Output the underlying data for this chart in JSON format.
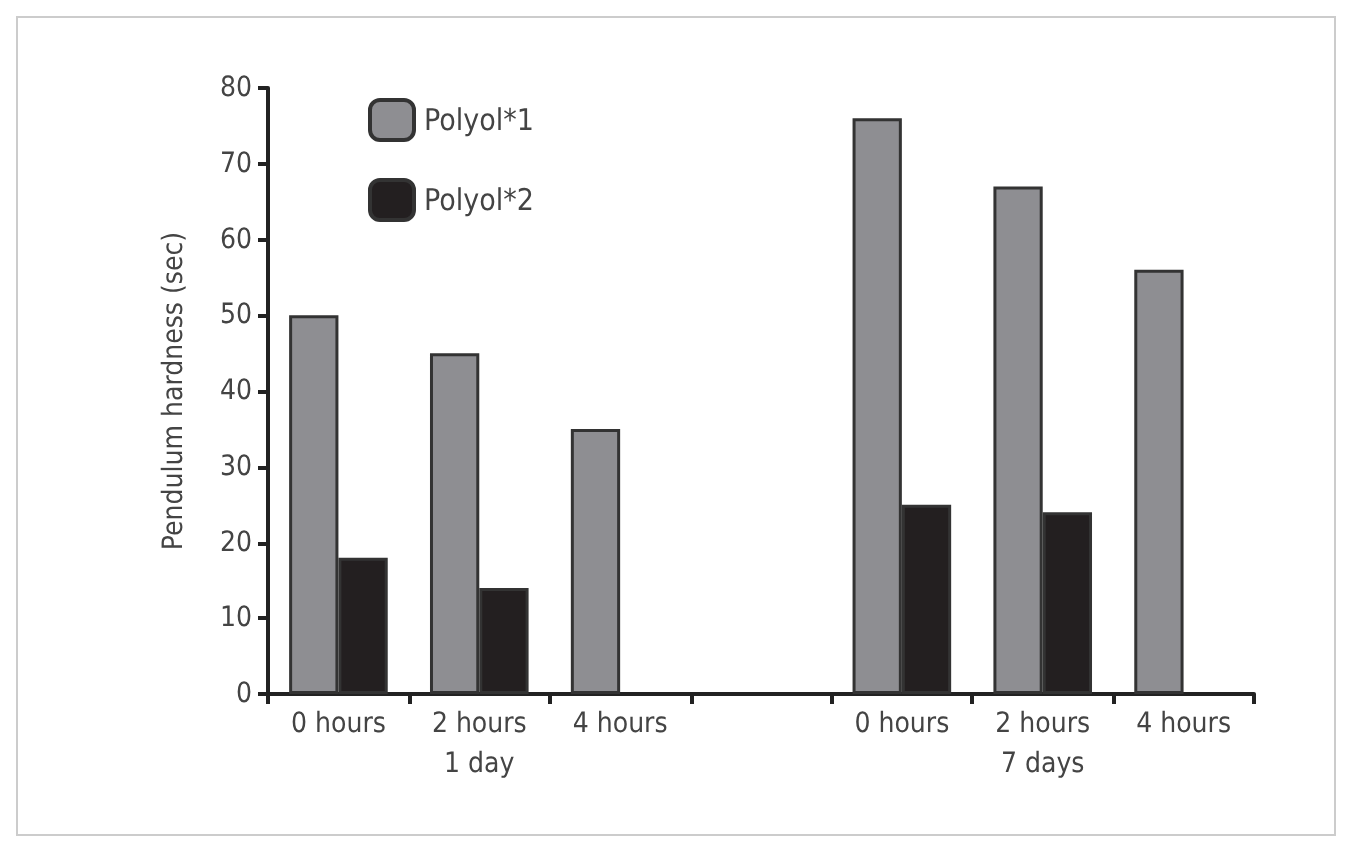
{
  "chart_data": {
    "type": "bar",
    "ylabel": "Pendulum hardness (sec)",
    "categories": [
      "0 hours",
      "2 hours",
      "4 hours",
      null,
      "0 hours",
      "2 hours",
      "4 hours"
    ],
    "series": [
      {
        "name": "Polyol*1",
        "color": "#8e8e92",
        "values": [
          50,
          45,
          35,
          null,
          76,
          67,
          56
        ]
      },
      {
        "name": "Polyol*2",
        "color": "#231f20",
        "values": [
          18,
          14,
          null,
          null,
          25,
          24,
          null
        ]
      }
    ],
    "ylim": [
      0,
      80
    ],
    "yticks": [
      0,
      10,
      20,
      30,
      40,
      50,
      60,
      70,
      80
    ],
    "grid": false,
    "legend": "top left",
    "annotations": [
      "1 day",
      "7 days"
    ]
  }
}
